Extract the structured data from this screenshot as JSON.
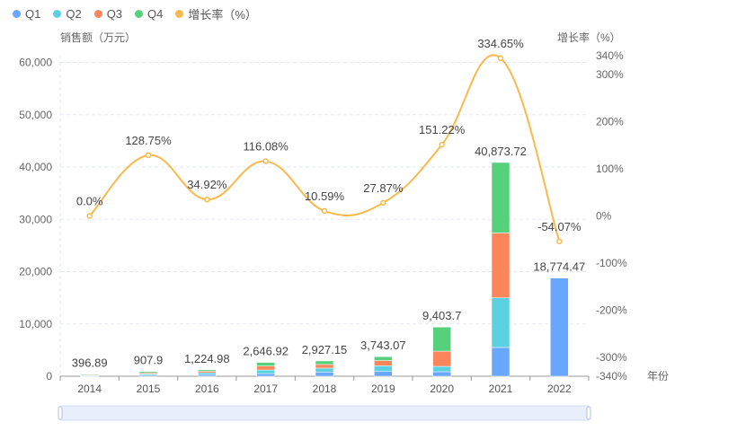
{
  "chart_data": {
    "type": "bar",
    "categories": [
      "2014",
      "2015",
      "2016",
      "2017",
      "2018",
      "2019",
      "2020",
      "2021",
      "2022"
    ],
    "xlabel": "年份",
    "ylabel": "销售额（万元）",
    "y2label": "增长率（%）",
    "ylim": [
      0,
      61300
    ],
    "y_ticks": [
      0,
      10000,
      20000,
      30000,
      40000,
      50000,
      60000
    ],
    "y_tick_labels": [
      "0",
      "10,000",
      "20,000",
      "30,000",
      "40,000",
      "50,000",
      "60,000"
    ],
    "y2lim": [
      -340,
      340
    ],
    "y2_ticks": [
      -340,
      -300,
      -200,
      -100,
      0,
      100,
      200,
      300,
      340
    ],
    "y2_tick_labels": [
      "-340%",
      "-300%",
      "-200%",
      "-100%",
      "0%",
      "100%",
      "200%",
      "300%",
      "340%"
    ],
    "grid": true,
    "legend_placement": "top-left",
    "series": [
      {
        "name": "Q1",
        "color": "#69a7ff",
        "values": [
          60,
          200,
          300,
          500,
          800,
          900,
          860,
          5500,
          18774.47
        ]
      },
      {
        "name": "Q2",
        "color": "#5bd0e0",
        "values": [
          100,
          250,
          350,
          700,
          750,
          1100,
          1030,
          9500,
          0
        ]
      },
      {
        "name": "Q3",
        "color": "#fc855c",
        "values": [
          100,
          230,
          300,
          750,
          700,
          1000,
          2910,
          12400,
          0
        ]
      },
      {
        "name": "Q4",
        "color": "#57d07c",
        "values": [
          136.89,
          227.9,
          274.98,
          696.92,
          677.15,
          743.07,
          4603.7,
          13473.72,
          0
        ]
      }
    ],
    "totals": [
      396.89,
      907.9,
      1224.98,
      2646.92,
      2927.15,
      3743.07,
      9403.7,
      40873.72,
      18774.47
    ],
    "total_labels": [
      "396.89",
      "907.9",
      "1,224.98",
      "2,646.92",
      "2,927.15",
      "3,743.07",
      "9,403.7",
      "40,873.72",
      "18,774.47"
    ],
    "line": {
      "name": "增长率（%）",
      "color": "#fbb84c",
      "values": [
        0,
        128.75,
        34.92,
        116.08,
        10.59,
        27.87,
        151.22,
        334.65,
        -54.07
      ],
      "labels": [
        "0.0%",
        "128.75%",
        "34.92%",
        "116.08%",
        "10.59%",
        "27.87%",
        "151.22%",
        "334.65%",
        "-54.07%"
      ]
    }
  }
}
